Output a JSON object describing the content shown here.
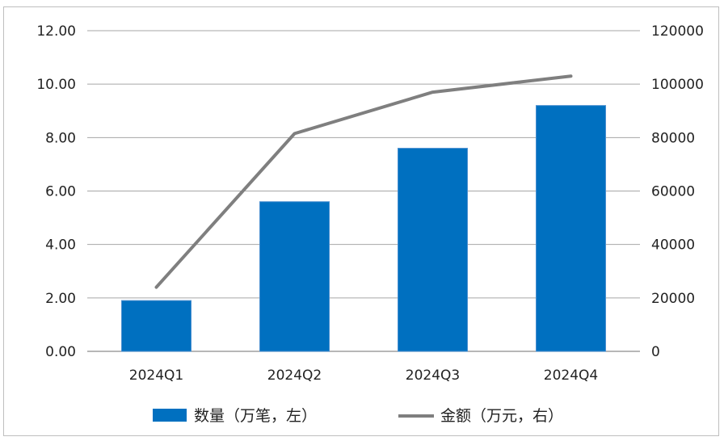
{
  "chart_data": {
    "type": "bar",
    "categories": [
      "2024Q1",
      "2024Q2",
      "2024Q3",
      "2024Q4"
    ],
    "series": [
      {
        "name": "数量（万笔，左）",
        "type": "bar",
        "axis": "left",
        "color": "#0070C0",
        "values": [
          1.9,
          5.6,
          7.6,
          9.2
        ]
      },
      {
        "name": "金额（万元，右）",
        "type": "line",
        "axis": "right",
        "color": "#7F7F7F",
        "values": [
          24000,
          81500,
          97000,
          103000
        ]
      }
    ],
    "ylim_left": [
      0,
      12
    ],
    "ylim_right": [
      0,
      120000
    ],
    "yticks_left": [
      "0.00",
      "2.00",
      "4.00",
      "6.00",
      "8.00",
      "10.00",
      "12.00"
    ],
    "yticks_right": [
      "0",
      "20000",
      "40000",
      "60000",
      "80000",
      "100000",
      "120000"
    ],
    "grid": true,
    "legend_position": "bottom"
  }
}
